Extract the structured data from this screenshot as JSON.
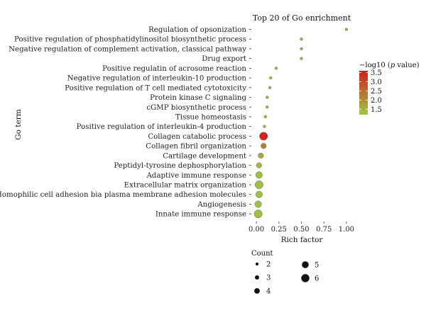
{
  "chart_data": {
    "type": "scatter",
    "title": "Top 20 of Go enrichment",
    "xlabel": "Rich factor",
    "ylabel": "Go term",
    "xlim": [
      -0.04,
      1.04
    ],
    "x_ticks": [
      "0.00",
      "0.25",
      "0.50",
      "0.75",
      "1.00"
    ],
    "x_tick_values": [
      0,
      0.25,
      0.5,
      0.75,
      1.0
    ],
    "grid": false,
    "color_legend": {
      "title_prefix": "−log10 (",
      "title_italic": "p",
      "title_suffix": " value)",
      "range": [
        1.2,
        3.6
      ],
      "ticks": [
        "3.5",
        "3.0",
        "2.5",
        "2.0",
        "1.5"
      ],
      "tick_values": [
        3.5,
        3.0,
        2.5,
        2.0,
        1.5
      ],
      "colors": {
        "low": "#9dc840",
        "high": "#d21d1d"
      },
      "placement": "right"
    },
    "size_legend": {
      "title": "Count",
      "entries": [
        {
          "label": "2",
          "value": 2
        },
        {
          "label": "3",
          "value": 3
        },
        {
          "label": "4",
          "value": 4
        },
        {
          "label": "5",
          "value": 5
        },
        {
          "label": "6",
          "value": 6
        }
      ],
      "placement": "bottom"
    },
    "points": [
      {
        "term": "Regulation of opsonization",
        "rich_factor": 1.0,
        "neg_log10_p": 1.6,
        "count": 2
      },
      {
        "term": "Positive regulation of phosphatidylinositol biosynthetic process",
        "rich_factor": 0.5,
        "neg_log10_p": 1.5,
        "count": 2
      },
      {
        "term": "Negative regulation of complement activation, classical pathway",
        "rich_factor": 0.5,
        "neg_log10_p": 1.5,
        "count": 2
      },
      {
        "term": "Drug export",
        "rich_factor": 0.5,
        "neg_log10_p": 1.5,
        "count": 2
      },
      {
        "term": "Positive regulatin of acrosome reaction",
        "rich_factor": 0.22,
        "neg_log10_p": 1.4,
        "count": 2
      },
      {
        "term": "Negative regulation of interleukin-10 production",
        "rich_factor": 0.16,
        "neg_log10_p": 1.4,
        "count": 2
      },
      {
        "term": "Positive regulation of T cell mediated cytotoxicity",
        "rich_factor": 0.15,
        "neg_log10_p": 1.4,
        "count": 2
      },
      {
        "term": "Protein kinase C signaling",
        "rich_factor": 0.12,
        "neg_log10_p": 1.4,
        "count": 2
      },
      {
        "term": "cGMP biosynthetic process",
        "rich_factor": 0.12,
        "neg_log10_p": 1.4,
        "count": 2
      },
      {
        "term": "Tissue homeostasis",
        "rich_factor": 0.1,
        "neg_log10_p": 1.4,
        "count": 2
      },
      {
        "term": "Positive regulation of interleukin-4 production",
        "rich_factor": 0.09,
        "neg_log10_p": 1.4,
        "count": 2
      },
      {
        "term": "Collagen catabolic process",
        "rich_factor": 0.08,
        "neg_log10_p": 3.5,
        "count": 6
      },
      {
        "term": "Collagen fibril organization",
        "rich_factor": 0.08,
        "neg_log10_p": 2.2,
        "count": 4
      },
      {
        "term": "Cartilage development",
        "rich_factor": 0.05,
        "neg_log10_p": 1.6,
        "count": 4
      },
      {
        "term": "Peptidyl-tyrosine dephosphorylation",
        "rich_factor": 0.03,
        "neg_log10_p": 1.4,
        "count": 4
      },
      {
        "term": "Adaptive immune response",
        "rich_factor": 0.03,
        "neg_log10_p": 1.3,
        "count": 5
      },
      {
        "term": "Extracellular matrix organization",
        "rich_factor": 0.03,
        "neg_log10_p": 1.3,
        "count": 6
      },
      {
        "term": "Homophilic cell adhesion bia plasma membrane adhesion molecules",
        "rich_factor": 0.03,
        "neg_log10_p": 1.3,
        "count": 5
      },
      {
        "term": "Angiogenesis",
        "rich_factor": 0.02,
        "neg_log10_p": 1.3,
        "count": 5
      },
      {
        "term": "Innate immune response",
        "rich_factor": 0.02,
        "neg_log10_p": 1.3,
        "count": 6
      }
    ]
  }
}
